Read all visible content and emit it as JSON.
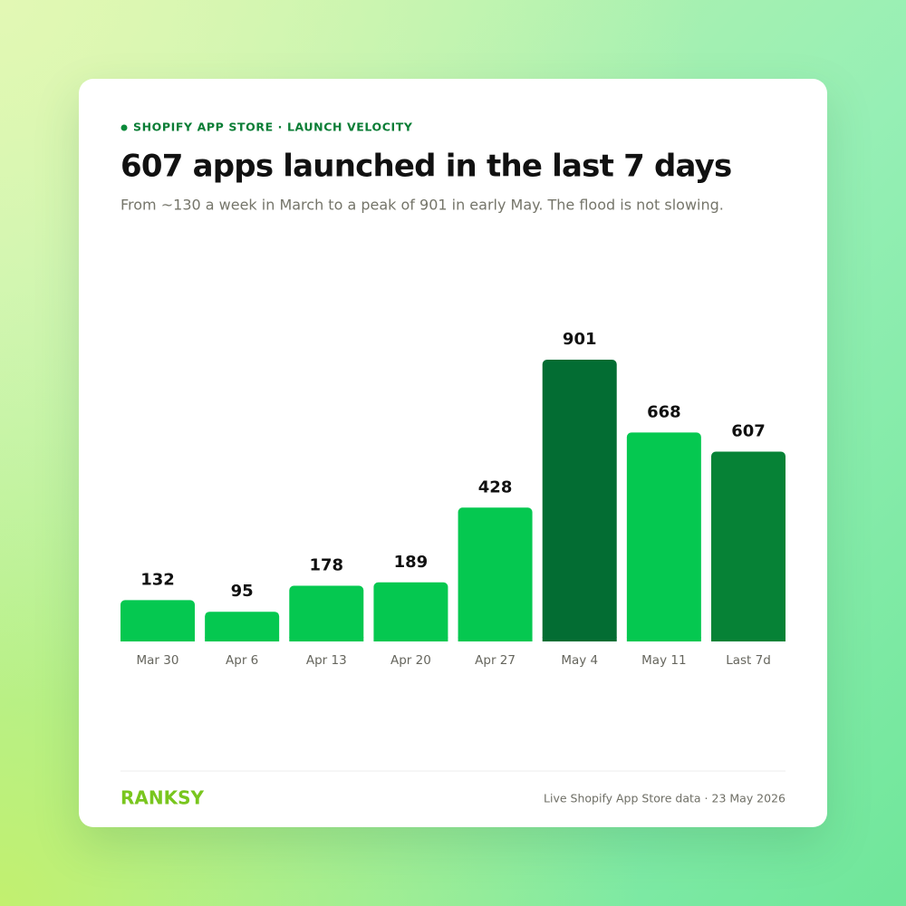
{
  "chart_data": {
    "type": "bar",
    "eyebrow": "SHOPIFY APP STORE · LAUNCH VELOCITY",
    "title": "607 apps launched in the last 7 days",
    "subtitle": "From ~130 a week in March to a peak of 901 in early May. The flood is not slowing.",
    "categories": [
      "Mar 30",
      "Apr 6",
      "Apr 13",
      "Apr 20",
      "Apr 27",
      "May 4",
      "May 11",
      "Last 7d"
    ],
    "values": [
      132,
      95,
      178,
      189,
      428,
      901,
      668,
      607
    ],
    "colors": [
      "#05c850",
      "#05c850",
      "#05c850",
      "#05c850",
      "#05c850",
      "#036d33",
      "#05c850",
      "#068236"
    ],
    "brand": "RANKSY",
    "source": "Live Shopify App Store data · 23 May 2026"
  }
}
